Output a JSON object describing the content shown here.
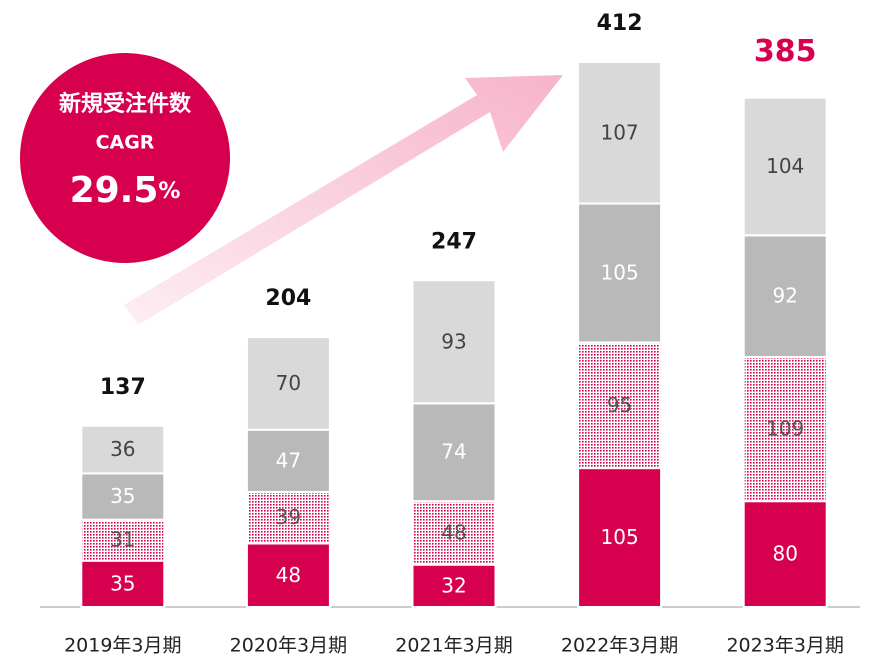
{
  "chart_data": {
    "type": "stacked_bar",
    "categories": [
      "2019年3月期",
      "2020年3月期",
      "2021年3月期",
      "2022年3月期",
      "2023年3月期"
    ],
    "series": [
      {
        "color": "#d7004f",
        "label_color": "#ffffff",
        "values": [
          35,
          48,
          32,
          105,
          80
        ]
      },
      {
        "color": "#d7004f",
        "pattern": "dots",
        "label_color": "#555555",
        "values": [
          31,
          39,
          48,
          95,
          109
        ]
      },
      {
        "color": "#b9b9b9",
        "label_color": "#ffffff",
        "values": [
          35,
          47,
          74,
          105,
          92
        ]
      },
      {
        "color": "#d9d9d9",
        "label_color": "#444444",
        "values": [
          36,
          70,
          93,
          107,
          104
        ]
      }
    ],
    "totals": [
      137,
      204,
      247,
      412,
      385
    ],
    "total_colors": [
      "#111111",
      "#111111",
      "#111111",
      "#111111",
      "#d7004f"
    ],
    "badge": {
      "label": "新規受注件数",
      "sublabel": "CAGR",
      "value": 29.5,
      "unit": "%",
      "color": "#d7004f"
    }
  }
}
